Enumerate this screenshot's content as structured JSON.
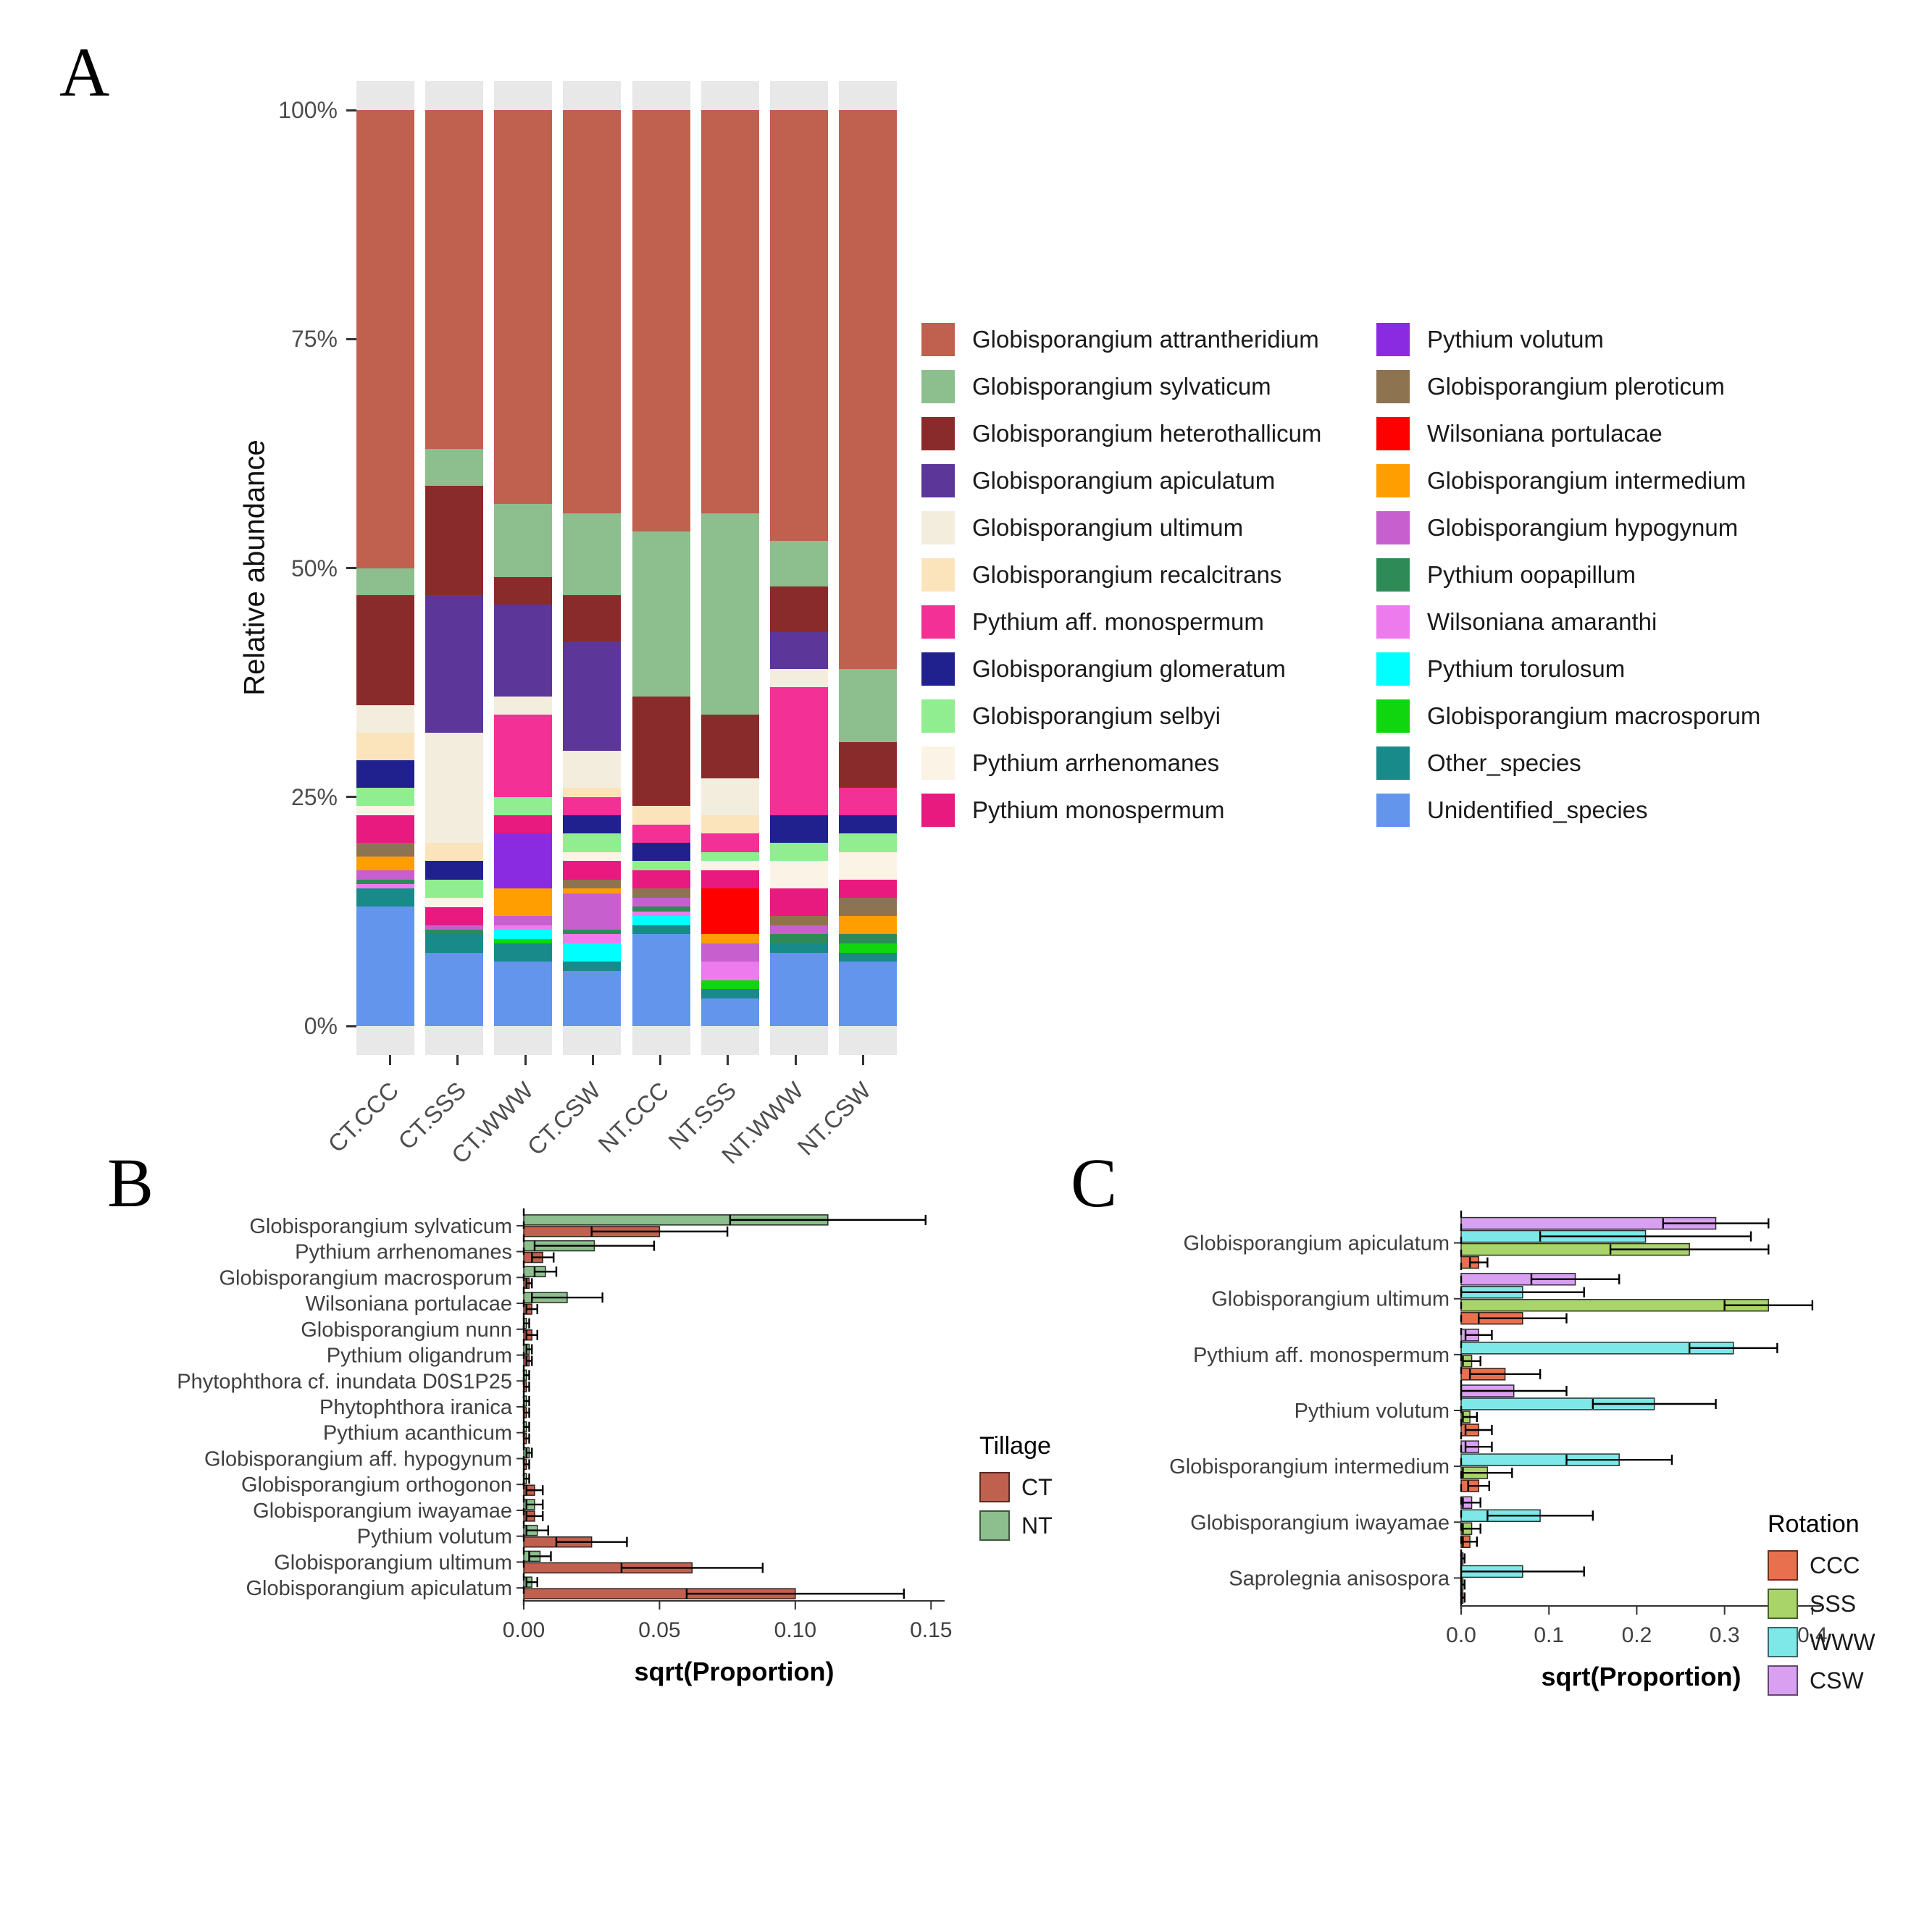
{
  "panels": {
    "a": {
      "label": "A"
    },
    "b": {
      "label": "B"
    },
    "c": {
      "label": "C"
    }
  },
  "chart_data": [
    {
      "id": "panel-a",
      "type": "bar",
      "subtype": "stacked-100-percent",
      "ylabel": "Relative abundance",
      "grid": false,
      "legend_position": "right",
      "categories": [
        "CT.CCC",
        "CT.SSS",
        "CT.WWW",
        "CT.CSW",
        "NT.CCC",
        "NT.SSS",
        "NT.WWW",
        "NT.CSW"
      ],
      "ylim": [
        0,
        100
      ],
      "y_ticks": [
        {
          "value": 0,
          "label": "0%"
        },
        {
          "value": 25,
          "label": "25%"
        },
        {
          "value": 50,
          "label": "50%"
        },
        {
          "value": 75,
          "label": "75%"
        },
        {
          "value": 100,
          "label": "100%"
        }
      ],
      "stacking_note": "series listed top-of-stack first; values are percent of each bar",
      "series": [
        {
          "name": "Globisporangium attrantheridium",
          "color": "#C0604F",
          "values": [
            50,
            37,
            43,
            44,
            46,
            44,
            47,
            61
          ]
        },
        {
          "name": "Globisporangium sylvaticum",
          "color": "#8DBE8D",
          "values": [
            3,
            4,
            8,
            9,
            18,
            22,
            5,
            8
          ]
        },
        {
          "name": "Globisporangium heterothallicum",
          "color": "#8A2B2B",
          "values": [
            12,
            12,
            3,
            5,
            12,
            7,
            5,
            5
          ]
        },
        {
          "name": "Globisporangium apiculatum",
          "color": "#5C3799",
          "values": [
            0,
            15,
            10,
            12,
            0,
            0,
            4,
            0
          ]
        },
        {
          "name": "Globisporangium ultimum",
          "color": "#F3EDDE",
          "values": [
            3,
            12,
            2,
            4,
            0,
            4,
            2,
            0
          ]
        },
        {
          "name": "Globisporangium recalcitrans",
          "color": "#FBE3BC",
          "values": [
            3,
            2,
            0,
            1,
            2,
            2,
            0,
            0
          ]
        },
        {
          "name": "Pythium aff. monospermum",
          "color": "#F23096",
          "values": [
            0,
            0,
            9,
            2,
            2,
            2,
            14,
            3
          ]
        },
        {
          "name": "Globisporangium glomeratum",
          "color": "#20208F",
          "values": [
            3,
            2,
            0,
            2,
            2,
            0,
            3,
            2
          ]
        },
        {
          "name": "Globisporangium selbyi",
          "color": "#90EE90",
          "values": [
            2,
            2,
            2,
            2,
            1,
            1,
            2,
            2
          ]
        },
        {
          "name": "Pythium arrhenomanes",
          "color": "#FAF3E6",
          "values": [
            1,
            1,
            0,
            1,
            0,
            1,
            3,
            3
          ]
        },
        {
          "name": "Pythium monospermum",
          "color": "#E8197F",
          "values": [
            3,
            2,
            2,
            2,
            2,
            2,
            3,
            2
          ]
        },
        {
          "name": "Pythium volutum",
          "color": "#8A2BE2",
          "values": [
            0,
            0,
            6,
            0,
            0,
            0,
            0,
            0
          ]
        },
        {
          "name": "Globisporangium pleroticum",
          "color": "#8E7350",
          "values": [
            1.5,
            0,
            0,
            1,
            1,
            0,
            1,
            2
          ]
        },
        {
          "name": "Wilsoniana portulacae",
          "color": "#FF0000",
          "values": [
            0,
            0,
            0,
            0,
            0,
            5,
            0,
            0
          ]
        },
        {
          "name": "Globisporangium intermedium",
          "color": "#FF9E00",
          "values": [
            1.5,
            0,
            3,
            0.5,
            0,
            1,
            0,
            2
          ]
        },
        {
          "name": "Globisporangium hypogynum",
          "color": "#C75FCE",
          "values": [
            1,
            0.5,
            1,
            4,
            1,
            2,
            1,
            0
          ]
        },
        {
          "name": "Pythium oopapillum",
          "color": "#2E8B57",
          "values": [
            0.5,
            0.5,
            0,
            0.5,
            0.5,
            0,
            1,
            1
          ]
        },
        {
          "name": "Wilsoniana amaranthi",
          "color": "#EE7BEE",
          "values": [
            0.5,
            0,
            0.5,
            1,
            0.5,
            2,
            0,
            0
          ]
        },
        {
          "name": "Pythium torulosum",
          "color": "#00FFFF",
          "values": [
            0,
            0,
            1,
            2,
            1,
            0,
            0,
            0
          ]
        },
        {
          "name": "Globisporangium macrosporum",
          "color": "#0FD60F",
          "values": [
            0,
            0,
            0.5,
            0,
            0,
            1,
            0,
            1
          ]
        },
        {
          "name": "Other_species",
          "color": "#188A8A",
          "values": [
            2,
            2,
            2,
            1,
            1,
            1,
            1,
            1
          ]
        },
        {
          "name": "Unidentified_species",
          "color": "#6495ED",
          "values": [
            13,
            8,
            7,
            6,
            10,
            3,
            8,
            7
          ]
        }
      ]
    },
    {
      "id": "panel-b",
      "type": "bar",
      "subtype": "grouped-horizontal",
      "xlabel": "sqrt(Proportion)",
      "legend_title": "Tillage",
      "legend_position": "right",
      "grid": false,
      "xlim": [
        0,
        0.155
      ],
      "x_ticks": [
        {
          "value": 0,
          "label": "0.00"
        },
        {
          "value": 0.05,
          "label": "0.05"
        },
        {
          "value": 0.1,
          "label": "0.10"
        },
        {
          "value": 0.15,
          "label": "0.15"
        }
      ],
      "draw_order_note": "last series is drawn as the top bar of each group",
      "categories": [
        "Globisporangium sylvaticum",
        "Pythium arrhenomanes",
        "Globisporangium macrosporum",
        "Wilsoniana portulacae",
        "Globisporangium nunn",
        "Pythium oligandrum",
        "Phytophthora cf. inundata D0S1P25",
        "Phytophthora iranica",
        "Pythium acanthicum",
        "Globisporangium aff. hypogynum",
        "Globisporangium orthogonon",
        "Globisporangium iwayamae",
        "Pythium volutum",
        "Globisporangium ultimum",
        "Globisporangium apiculatum"
      ],
      "series": [
        {
          "name": "CT",
          "color": "#C0604F",
          "values": [
            0.05,
            0.007,
            0.002,
            0.003,
            0.003,
            0.002,
            0.001,
            0.001,
            0.001,
            0.001,
            0.004,
            0.004,
            0.025,
            0.062,
            0.1
          ],
          "errors": [
            0.025,
            0.004,
            0.001,
            0.002,
            0.002,
            0.001,
            0.001,
            0.001,
            0.001,
            0.001,
            0.003,
            0.003,
            0.013,
            0.026,
            0.04
          ]
        },
        {
          "name": "NT",
          "color": "#8DBE8D",
          "values": [
            0.112,
            0.026,
            0.008,
            0.016,
            0.001,
            0.002,
            0.001,
            0.001,
            0.001,
            0.002,
            0.001,
            0.004,
            0.005,
            0.006,
            0.003
          ],
          "errors": [
            0.036,
            0.022,
            0.004,
            0.013,
            0.001,
            0.001,
            0.001,
            0.001,
            0.001,
            0.001,
            0.001,
            0.003,
            0.004,
            0.004,
            0.002
          ]
        }
      ]
    },
    {
      "id": "panel-c",
      "type": "bar",
      "subtype": "grouped-horizontal",
      "xlabel": "sqrt(Proportion)",
      "legend_title": "Rotation",
      "legend_position": "right",
      "grid": false,
      "xlim": [
        0,
        0.41
      ],
      "x_ticks": [
        {
          "value": 0,
          "label": "0.0"
        },
        {
          "value": 0.1,
          "label": "0.1"
        },
        {
          "value": 0.2,
          "label": "0.2"
        },
        {
          "value": 0.3,
          "label": "0.3"
        },
        {
          "value": 0.4,
          "label": "0.4"
        }
      ],
      "draw_order_note": "last series is drawn as the top bar of each group",
      "categories": [
        "Globisporangium apiculatum",
        "Globisporangium ultimum",
        "Pythium aff. monospermum",
        "Pythium volutum",
        "Globisporangium intermedium",
        "Globisporangium iwayamae",
        "Saprolegnia anisospora"
      ],
      "series": [
        {
          "name": "CCC",
          "color": "#E8704F",
          "values": [
            0.02,
            0.07,
            0.05,
            0.02,
            0.02,
            0.01,
            0.002
          ],
          "errors": [
            0.01,
            0.05,
            0.04,
            0.015,
            0.012,
            0.008,
            0.002
          ]
        },
        {
          "name": "SSS",
          "color": "#A9D46A",
          "values": [
            0.26,
            0.35,
            0.012,
            0.01,
            0.03,
            0.012,
            0.002
          ],
          "errors": [
            0.09,
            0.05,
            0.01,
            0.008,
            0.028,
            0.01,
            0.002
          ]
        },
        {
          "name": "WWW",
          "color": "#7EE8E8",
          "values": [
            0.21,
            0.07,
            0.31,
            0.22,
            0.18,
            0.09,
            0.07
          ],
          "errors": [
            0.12,
            0.07,
            0.05,
            0.07,
            0.06,
            0.06,
            0.07
          ]
        },
        {
          "name": "CSW",
          "color": "#D9A0F2",
          "values": [
            0.29,
            0.13,
            0.02,
            0.06,
            0.02,
            0.012,
            0.002
          ],
          "errors": [
            0.06,
            0.05,
            0.015,
            0.06,
            0.015,
            0.01,
            0.002
          ]
        }
      ]
    }
  ]
}
